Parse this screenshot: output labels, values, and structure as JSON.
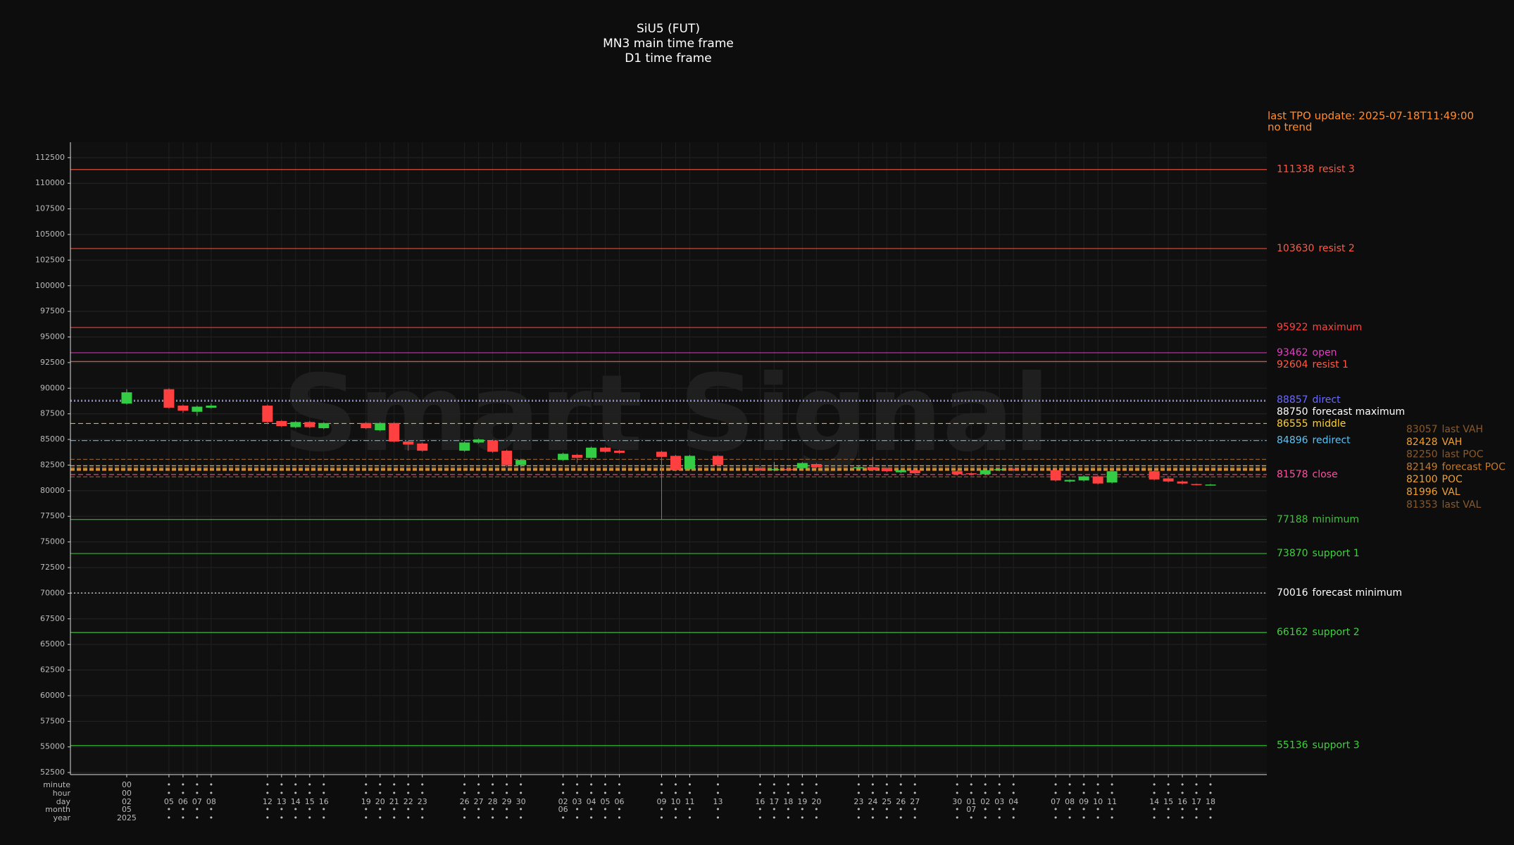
{
  "chart_data": {
    "type": "candlestick",
    "title": "SiU5 (FUT)",
    "subtitle": [
      "MN3 main time frame",
      "D1 time frame"
    ],
    "annotations": [
      "last TPO update: 2025-07-18T11:49:00",
      "no trend"
    ],
    "watermark": "Smart Signal",
    "up_color": "#33cc44",
    "down_color": "#ff4040",
    "grid": true,
    "xlim": [
      "2025-04-28",
      "2025-07-22"
    ],
    "ylim": [
      52300,
      114000
    ],
    "yticks": [
      52500,
      55000,
      57500,
      60000,
      62500,
      65000,
      67500,
      70000,
      72500,
      75000,
      77500,
      80000,
      82500,
      85000,
      87500,
      90000,
      92500,
      95000,
      97500,
      100000,
      102500,
      105000,
      107500,
      110000,
      112500
    ],
    "xtick_rows": [
      "minute",
      "hour",
      "day",
      "month",
      "year"
    ],
    "x": [
      "2025-05-02",
      "2025-05-05",
      "2025-05-06",
      "2025-05-07",
      "2025-05-08",
      "2025-05-12",
      "2025-05-13",
      "2025-05-14",
      "2025-05-15",
      "2025-05-16",
      "2025-05-19",
      "2025-05-20",
      "2025-05-21",
      "2025-05-22",
      "2025-05-23",
      "2025-05-26",
      "2025-05-27",
      "2025-05-28",
      "2025-05-29",
      "2025-05-30",
      "2025-06-02",
      "2025-06-03",
      "2025-06-04",
      "2025-06-05",
      "2025-06-06",
      "2025-06-09",
      "2025-06-10",
      "2025-06-11",
      "2025-06-13",
      "2025-06-16",
      "2025-06-17",
      "2025-06-18",
      "2025-06-19",
      "2025-06-20",
      "2025-06-23",
      "2025-06-24",
      "2025-06-25",
      "2025-06-26",
      "2025-06-27",
      "2025-06-30",
      "2025-07-01",
      "2025-07-02",
      "2025-07-03",
      "2025-07-04",
      "2025-07-07",
      "2025-07-08",
      "2025-07-09",
      "2025-07-10",
      "2025-07-11",
      "2025-07-14",
      "2025-07-15",
      "2025-07-16",
      "2025-07-17",
      "2025-07-18"
    ],
    "open": [
      88500,
      89900,
      88300,
      87700,
      88100,
      88300,
      86800,
      86200,
      86700,
      86100,
      86600,
      85900,
      86600,
      84800,
      84600,
      83900,
      84700,
      84900,
      83900,
      82500,
      83000,
      83500,
      83200,
      84200,
      83900,
      83800,
      83400,
      82100,
      83400,
      82200,
      82000,
      82100,
      82200,
      82600,
      82200,
      82300,
      82200,
      81800,
      82000,
      81900,
      81700,
      81600,
      82000,
      82100,
      82000,
      80900,
      81000,
      81400,
      80800,
      81900,
      81200,
      80900,
      80650,
      80550
    ],
    "high": [
      89900,
      90000,
      88400,
      88300,
      88500,
      88400,
      86900,
      86800,
      86800,
      86700,
      86700,
      86700,
      86700,
      84900,
      84700,
      84800,
      85100,
      85000,
      84000,
      83100,
      83700,
      83600,
      84300,
      84300,
      84000,
      83900,
      83500,
      83500,
      83500,
      82400,
      82800,
      82200,
      82800,
      82700,
      82400,
      83300,
      82300,
      82100,
      82100,
      82000,
      81800,
      82100,
      82200,
      82200,
      82100,
      81100,
      81500,
      81500,
      82000,
      82000,
      81300,
      81000,
      80700,
      80650
    ],
    "low": [
      88400,
      88000,
      87600,
      87300,
      88000,
      86500,
      86200,
      86100,
      86100,
      86000,
      86000,
      85800,
      84700,
      83900,
      83800,
      83800,
      84600,
      83700,
      82300,
      82300,
      82900,
      82700,
      83100,
      83700,
      83600,
      77188,
      81900,
      82000,
      82400,
      81900,
      81900,
      81900,
      82100,
      82200,
      82100,
      81900,
      81800,
      81700,
      81600,
      81500,
      81500,
      81500,
      81900,
      81900,
      80900,
      80800,
      80900,
      80600,
      80700,
      81000,
      80800,
      80600,
      80500,
      80500
    ],
    "close": [
      89600,
      88100,
      87800,
      88200,
      88300,
      86700,
      86300,
      86700,
      86200,
      86600,
      86100,
      86600,
      84800,
      84500,
      83900,
      84700,
      85000,
      83800,
      82500,
      83000,
      83600,
      83200,
      84200,
      83800,
      83700,
      83300,
      82000,
      83400,
      82500,
      82000,
      82100,
      82000,
      82700,
      82300,
      82300,
      82000,
      81900,
      82000,
      81700,
      81600,
      81650,
      82000,
      82100,
      82000,
      81000,
      81050,
      81400,
      80700,
      81900,
      81100,
      80900,
      80700,
      80550,
      80600
    ],
    "xticks": [
      {
        "value": "2025-05-02",
        "label": [
          "00",
          "00",
          "02",
          "05",
          "2025"
        ]
      },
      {
        "value": "2025-05-05",
        "label": [
          "•",
          "•",
          "05",
          "•",
          "•"
        ]
      },
      {
        "value": "2025-05-06",
        "label": [
          "•",
          "•",
          "06",
          "•",
          "•"
        ]
      },
      {
        "value": "2025-05-07",
        "label": [
          "•",
          "•",
          "07",
          "•",
          "•"
        ]
      },
      {
        "value": "2025-05-08",
        "label": [
          "•",
          "•",
          "08",
          "•",
          "•"
        ]
      },
      {
        "value": "2025-05-12",
        "label": [
          "•",
          "•",
          "12",
          "•",
          "•"
        ]
      },
      {
        "value": "2025-05-13",
        "label": [
          "•",
          "•",
          "13",
          "•",
          "•"
        ]
      },
      {
        "value": "2025-05-14",
        "label": [
          "•",
          "•",
          "14",
          "•",
          "•"
        ]
      },
      {
        "value": "2025-05-15",
        "label": [
          "•",
          "•",
          "15",
          "•",
          "•"
        ]
      },
      {
        "value": "2025-05-16",
        "label": [
          "•",
          "•",
          "16",
          "•",
          "•"
        ]
      },
      {
        "value": "2025-05-19",
        "label": [
          "•",
          "•",
          "19",
          "•",
          "•"
        ]
      },
      {
        "value": "2025-05-20",
        "label": [
          "•",
          "•",
          "20",
          "•",
          "•"
        ]
      },
      {
        "value": "2025-05-21",
        "label": [
          "•",
          "•",
          "21",
          "•",
          "•"
        ]
      },
      {
        "value": "2025-05-22",
        "label": [
          "•",
          "•",
          "22",
          "•",
          "•"
        ]
      },
      {
        "value": "2025-05-23",
        "label": [
          "•",
          "•",
          "23",
          "•",
          "•"
        ]
      },
      {
        "value": "2025-05-26",
        "label": [
          "•",
          "•",
          "26",
          "•",
          "•"
        ]
      },
      {
        "value": "2025-05-27",
        "label": [
          "•",
          "•",
          "27",
          "•",
          "•"
        ]
      },
      {
        "value": "2025-05-28",
        "label": [
          "•",
          "•",
          "28",
          "•",
          "•"
        ]
      },
      {
        "value": "2025-05-29",
        "label": [
          "•",
          "•",
          "29",
          "•",
          "•"
        ]
      },
      {
        "value": "2025-05-30",
        "label": [
          "•",
          "•",
          "30",
          "•",
          "•"
        ]
      },
      {
        "value": "2025-06-02",
        "label": [
          "•",
          "•",
          "02",
          "06",
          "•"
        ]
      },
      {
        "value": "2025-06-03",
        "label": [
          "•",
          "•",
          "03",
          "•",
          "•"
        ]
      },
      {
        "value": "2025-06-04",
        "label": [
          "•",
          "•",
          "04",
          "•",
          "•"
        ]
      },
      {
        "value": "2025-06-05",
        "label": [
          "•",
          "•",
          "05",
          "•",
          "•"
        ]
      },
      {
        "value": "2025-06-06",
        "label": [
          "•",
          "•",
          "06",
          "•",
          "•"
        ]
      },
      {
        "value": "2025-06-09",
        "label": [
          "•",
          "•",
          "09",
          "•",
          "•"
        ]
      },
      {
        "value": "2025-06-10",
        "label": [
          "•",
          "•",
          "10",
          "•",
          "•"
        ]
      },
      {
        "value": "2025-06-11",
        "label": [
          "•",
          "•",
          "11",
          "•",
          "•"
        ]
      },
      {
        "value": "2025-06-13",
        "label": [
          "•",
          "•",
          "13",
          "•",
          "•"
        ]
      },
      {
        "value": "2025-06-16",
        "label": [
          "•",
          "•",
          "16",
          "•",
          "•"
        ]
      },
      {
        "value": "2025-06-17",
        "label": [
          "•",
          "•",
          "17",
          "•",
          "•"
        ]
      },
      {
        "value": "2025-06-18",
        "label": [
          "•",
          "•",
          "18",
          "•",
          "•"
        ]
      },
      {
        "value": "2025-06-19",
        "label": [
          "•",
          "•",
          "19",
          "•",
          "•"
        ]
      },
      {
        "value": "2025-06-20",
        "label": [
          "•",
          "•",
          "20",
          "•",
          "•"
        ]
      },
      {
        "value": "2025-06-23",
        "label": [
          "•",
          "•",
          "23",
          "•",
          "•"
        ]
      },
      {
        "value": "2025-06-24",
        "label": [
          "•",
          "•",
          "24",
          "•",
          "•"
        ]
      },
      {
        "value": "2025-06-25",
        "label": [
          "•",
          "•",
          "25",
          "•",
          "•"
        ]
      },
      {
        "value": "2025-06-26",
        "label": [
          "•",
          "•",
          "26",
          "•",
          "•"
        ]
      },
      {
        "value": "2025-06-27",
        "label": [
          "•",
          "•",
          "27",
          "•",
          "•"
        ]
      },
      {
        "value": "2025-06-30",
        "label": [
          "•",
          "•",
          "30",
          "•",
          "•"
        ]
      },
      {
        "value": "2025-07-01",
        "label": [
          "•",
          "•",
          "01",
          "07",
          "•"
        ]
      },
      {
        "value": "2025-07-02",
        "label": [
          "•",
          "•",
          "02",
          "•",
          "•"
        ]
      },
      {
        "value": "2025-07-03",
        "label": [
          "•",
          "•",
          "03",
          "•",
          "•"
        ]
      },
      {
        "value": "2025-07-04",
        "label": [
          "•",
          "•",
          "04",
          "•",
          "•"
        ]
      },
      {
        "value": "2025-07-07",
        "label": [
          "•",
          "•",
          "07",
          "•",
          "•"
        ]
      },
      {
        "value": "2025-07-08",
        "label": [
          "•",
          "•",
          "08",
          "•",
          "•"
        ]
      },
      {
        "value": "2025-07-09",
        "label": [
          "•",
          "•",
          "09",
          "•",
          "•"
        ]
      },
      {
        "value": "2025-07-10",
        "label": [
          "•",
          "•",
          "10",
          "•",
          "•"
        ]
      },
      {
        "value": "2025-07-11",
        "label": [
          "•",
          "•",
          "11",
          "•",
          "•"
        ]
      },
      {
        "value": "2025-07-14",
        "label": [
          "•",
          "•",
          "14",
          "•",
          "•"
        ]
      },
      {
        "value": "2025-07-15",
        "label": [
          "•",
          "•",
          "15",
          "•",
          "•"
        ]
      },
      {
        "value": "2025-07-16",
        "label": [
          "•",
          "•",
          "16",
          "•",
          "•"
        ]
      },
      {
        "value": "2025-07-17",
        "label": [
          "•",
          "•",
          "17",
          "•",
          "•"
        ]
      },
      {
        "value": "2025-07-18",
        "label": [
          "•",
          "•",
          "18",
          "•",
          "•"
        ]
      }
    ],
    "levels": [
      {
        "value": 111338,
        "name": "resist 3",
        "color": "#ff5a45",
        "style": "solid"
      },
      {
        "value": 103630,
        "name": "resist 2",
        "color": "#ff5a45",
        "style": "solid"
      },
      {
        "value": 95922,
        "name": "maximum",
        "color": "#ff4040",
        "style": "solid"
      },
      {
        "value": 93462,
        "name": "open",
        "color": "#e040c0",
        "style": "solid"
      },
      {
        "value": 92604,
        "name": "resist 1",
        "color": "#ff5a45",
        "style": "solid"
      },
      {
        "value": 88857,
        "name": "direct",
        "color": "#6a6aff",
        "style": "dotted"
      },
      {
        "value": 88750,
        "name": "forecast maximum",
        "color": "#ffffff",
        "style": "dotted"
      },
      {
        "value": 86555,
        "name": "middle",
        "color": "#ffd030",
        "style": "dashed"
      },
      {
        "value": 84896,
        "name": "redirect",
        "color": "#60c0f0",
        "style": "dashdot"
      },
      {
        "value": 81578,
        "name": "close",
        "color": "#ff50a0",
        "style": "dashed"
      },
      {
        "value": 77188,
        "name": "minimum",
        "color": "#40c040",
        "style": "solid"
      },
      {
        "value": 73870,
        "name": "support 1",
        "color": "#40d040",
        "style": "solid"
      },
      {
        "value": 70016,
        "name": "forecast minimum",
        "color": "#ffffff",
        "style": "dotted"
      },
      {
        "value": 66162,
        "name": "support 2",
        "color": "#40d040",
        "style": "solid"
      },
      {
        "value": 55136,
        "name": "support 3",
        "color": "#40d040",
        "style": "solid"
      }
    ],
    "tpo_levels": [
      {
        "value": 83057,
        "name": "last VAH",
        "color": "#8a5a2a"
      },
      {
        "value": 82428,
        "name": "VAH",
        "color": "#f0a030"
      },
      {
        "value": 82250,
        "name": "last POC",
        "color": "#8a5a2a"
      },
      {
        "value": 82149,
        "name": "forecast POC",
        "color": "#c07a30"
      },
      {
        "value": 82100,
        "name": "POC",
        "color": "#f0a030"
      },
      {
        "value": 81996,
        "name": "VAL",
        "color": "#f0a030"
      },
      {
        "value": 81353,
        "name": "last VAL",
        "color": "#8a5a2a"
      }
    ]
  }
}
